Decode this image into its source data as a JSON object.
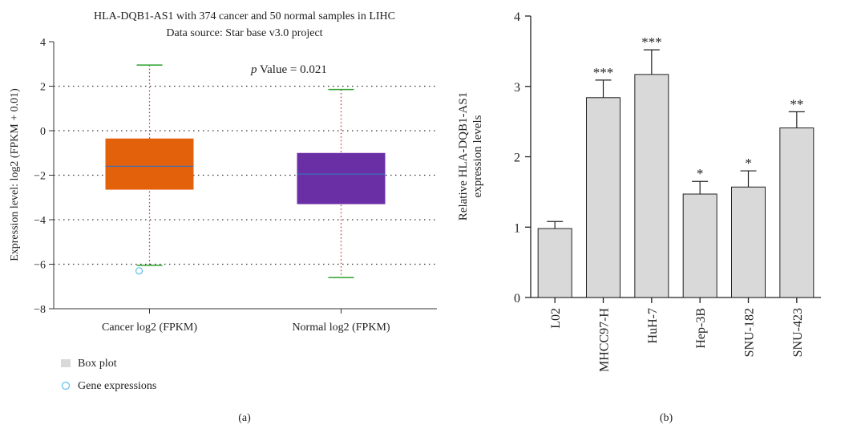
{
  "chart_data": [
    {
      "type": "box",
      "title": "HLA-DQB1-AS1 with 374 cancer and 50 normal samples in LIHC",
      "subtitle": "Data source: Star base v3.0 project",
      "ylabel": "Expression level: log2 (FPKM + 0.01)",
      "ylim": [
        -8,
        4
      ],
      "yticks": [
        "4",
        "2",
        "0",
        "−2",
        "−4",
        "−6",
        "−8"
      ],
      "ytick_values": [
        4,
        2,
        0,
        -2,
        -4,
        -6,
        -8
      ],
      "grid": "horizontal dotted",
      "annotation_italic": "p",
      "annotation_rest": " Value = 0.021",
      "groups": [
        {
          "label": "Cancer log2 (FPKM)",
          "color": "#e4610c",
          "median": -1.6,
          "q1": -2.65,
          "q3": -0.35,
          "whisker_low": -6.05,
          "whisker_high": 2.95,
          "outliers": [
            -6.3
          ]
        },
        {
          "label": "Normal log2 (FPKM)",
          "color": "#6a2ea5",
          "median": -1.95,
          "q1": -3.3,
          "q3": -1.0,
          "whisker_low": -6.6,
          "whisker_high": 1.85,
          "outliers": []
        }
      ],
      "legend": [
        {
          "label": "Box plot",
          "symbol": "square",
          "color": "#d9d9d9"
        },
        {
          "label": "Gene expressions",
          "symbol": "circle",
          "color": "#5bc0eb"
        }
      ],
      "panel_label": "(a)"
    },
    {
      "type": "bar",
      "ylabel_line1": "Relative HLA-DQB1-AS1",
      "ylabel_line2": "expression levels",
      "ylim": [
        0,
        4
      ],
      "yticks": [
        "0",
        "1",
        "2",
        "3",
        "4"
      ],
      "ytick_values": [
        0,
        1,
        2,
        3,
        4
      ],
      "categories": [
        "L02",
        "MHCC97-H",
        "HuH-7",
        "Hep-3B",
        "SNU-182",
        "SNU-423"
      ],
      "values": [
        0.98,
        2.84,
        3.17,
        1.47,
        1.57,
        2.41
      ],
      "errors": [
        0.1,
        0.25,
        0.35,
        0.18,
        0.23,
        0.23
      ],
      "significance": [
        "",
        "***",
        "***",
        "*",
        "*",
        "**"
      ],
      "bar_color": "#d9d9d9",
      "panel_label": "(b)"
    }
  ]
}
